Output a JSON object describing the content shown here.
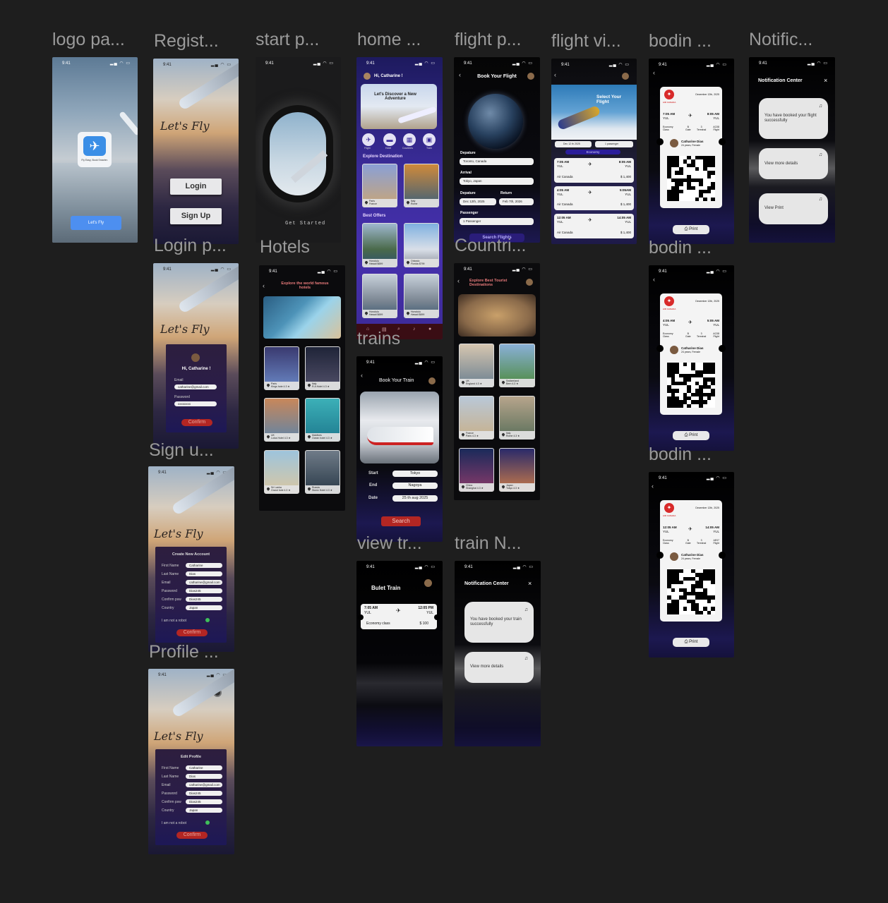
{
  "frames": {
    "logo": {
      "label": "logo pa...",
      "time": "9:41",
      "tagline": "Fly Easy, Book Smarter.",
      "cta": "Let's Fly"
    },
    "register": {
      "label": "Regist...",
      "time": "9:41",
      "title": "Let's Fly",
      "login": "Login",
      "signup": "Sign Up"
    },
    "start": {
      "label": "start p...",
      "time": "9:41",
      "cta": "Get Started"
    },
    "home": {
      "label": "home ...",
      "time": "9:41",
      "greeting": "Hi, Catharine !",
      "hero": "Let's Discover a New Adventure",
      "cats": [
        "Flight",
        "Hotel",
        "Countries",
        "Train"
      ],
      "explore_title": "Explore Destination",
      "explore": [
        {
          "name": "Paris",
          "sub": "France",
          "rate": "4.5"
        },
        {
          "name": "Italy",
          "sub": "Rome",
          "rate": "4.3"
        }
      ],
      "offers_title": "Best Offers",
      "offers": [
        {
          "name": "Honolulu",
          "sub": "Hawaii",
          "price": "$699"
        },
        {
          "name": "Orlando",
          "sub": "Florida",
          "price": "$799"
        },
        {
          "name": "Honolulu",
          "sub": "Hawaii",
          "price": "$699"
        },
        {
          "name": "Honolulu",
          "sub": "Hawaii",
          "price": "$699"
        }
      ]
    },
    "flight_plan": {
      "label": "flight p...",
      "time": "9:41",
      "title": "Book Your Flight",
      "departure_label": "Depature",
      "departure": "Toronto, Canada",
      "arrival_label": "Arrival",
      "arrival": "Tokyo, Japan",
      "dep_date_label": "Depature",
      "dep_date": "Dec 12th, 2025",
      "return_label": "Return",
      "return_date": "Feb 7th, 2026",
      "passenger_label": "Passenger",
      "passenger": "1 Passenger",
      "search": "Search Flights"
    },
    "flight_view": {
      "label": "flight vi...",
      "time": "9:41",
      "title": "Select Your Flight",
      "date": "Dec 12 th 2025",
      "pax": "1 passenger",
      "class": "Economy",
      "flights": [
        {
          "dep": "7:05 AM",
          "dep_code": "YUL",
          "arr": "8:05 AM",
          "arr_code": "YUL",
          "airline": "Air Canada",
          "price": "$ 1,400"
        },
        {
          "dep": "4:05 AM",
          "dep_code": "YUL",
          "arr": "5:05AM",
          "arr_code": "YUL",
          "airline": "Air Canada",
          "price": "$ 1,400"
        },
        {
          "dep": "12:05 AM",
          "dep_code": "YUL",
          "arr": "14:05 AM",
          "arr_code": "YUL",
          "airline": "Air Canada",
          "price": "$ 1,400"
        }
      ]
    },
    "boarding": [
      {
        "label": "bodin ...",
        "time": "9:41",
        "airline": "AIR CANADA",
        "date": "December 12th, 2025",
        "dep": "7:05 AM",
        "dep_code": "YUL",
        "arr": "8:05 AM",
        "arr_code": "YUL",
        "class": "Economy",
        "class_sub": "Class",
        "gate": "B",
        "gate_sub": "Gate",
        "terminal": "3",
        "terminal_sub": "Terminal",
        "flight": "AC08",
        "flight_sub": "Flight",
        "name": "Catharine Dias",
        "info": "24 years, Female",
        "print": "Print"
      },
      {
        "label": "bodin ...",
        "time": "9:41",
        "airline": "AIR CANADA",
        "date": "December 12th, 2025",
        "dep": "4:05 AM",
        "dep_code": "YUL",
        "arr": "5:05 AM",
        "arr_code": "YUL",
        "class": "Economy",
        "class_sub": "Class",
        "gate": "B",
        "gate_sub": "Gate",
        "terminal": "3",
        "terminal_sub": "Terminal",
        "flight": "AC08",
        "flight_sub": "Flight",
        "name": "Catharine Dias",
        "info": "24 years, Female",
        "print": "Print"
      },
      {
        "label": "bodin ...",
        "time": "9:41",
        "airline": "AIR CANADA",
        "date": "December 12th, 2025",
        "dep": "12:05 AM",
        "dep_code": "YUL",
        "arr": "14:05 AM",
        "arr_code": "YUL",
        "class": "Economy",
        "class_sub": "Class",
        "gate": "B",
        "gate_sub": "Gate",
        "terminal": "3",
        "terminal_sub": "Terminal",
        "flight": "AE07",
        "flight_sub": "Flight",
        "name": "Catharine Dias",
        "info": "24 years, Female",
        "print": "Print"
      }
    ],
    "notif": {
      "label": "Notific...",
      "time": "9:41",
      "title": "Notification Center",
      "items": [
        "You have booked your flight successfully",
        "View more details",
        "View Print"
      ]
    },
    "login": {
      "label": "Login p...",
      "time": "9:41",
      "title": "Let's Fly",
      "greeting": "Hi, Catharine !",
      "email_label": "Email",
      "email": "catharine@gmail.com",
      "password_label": "Password",
      "password": "xxxxxxxx",
      "confirm": "Confirm"
    },
    "hotels": {
      "label": "Hotels",
      "time": "9:41",
      "title": "Explore the world famous hotels",
      "items": [
        {
          "name": "Paris",
          "sub": "Kings hote",
          "rate": "4.3"
        },
        {
          "name": "Italy",
          "sub": "R.A Hotel",
          "rate": "4.3"
        },
        {
          "name": "UK",
          "sub": "Lotus Hotel",
          "rate": "4.3"
        },
        {
          "name": "Maldives",
          "sub": "Ocean hotel",
          "rate": "4.3"
        },
        {
          "name": "Sri Lanka",
          "sub": "Grand hote",
          "rate": "4.3"
        },
        {
          "name": "Russia",
          "sub": "Stoniz Hotel",
          "rate": "4.3"
        }
      ]
    },
    "countries": {
      "label": "Countri...",
      "time": "9:41",
      "title": "Explore Best Tourist Destinations",
      "items": [
        {
          "name": "UK",
          "sub": "England",
          "rate": "4.3"
        },
        {
          "name": "Switzerland",
          "sub": "Bern",
          "rate": "4.3"
        },
        {
          "name": "France",
          "sub": "Paris",
          "rate": "4.3"
        },
        {
          "name": "Italy",
          "sub": "Rome",
          "rate": "4.3"
        },
        {
          "name": "China",
          "sub": "Shanghai",
          "rate": "4.3"
        },
        {
          "name": "Japan",
          "sub": "Tokyo",
          "rate": "4.3"
        }
      ]
    },
    "trains": {
      "label": "trains",
      "time": "9:41",
      "title": "Book Your Train",
      "start_label": "Start",
      "start": "Tokyo",
      "end_label": "End",
      "end": "Nagoya",
      "date_label": "Date",
      "date": "25 th aug  2025",
      "search": "Search"
    },
    "signup": {
      "label": "Sign u...",
      "time": "9:41",
      "title": "Let's Fly",
      "heading": "Create New Account",
      "fields": [
        {
          "label": "First Name",
          "value": "Catharine"
        },
        {
          "label": "Last Name",
          "value": "Dias"
        },
        {
          "label": "Email",
          "value": "catharine@gmail.com"
        },
        {
          "label": "Password",
          "value": "Dias245"
        },
        {
          "label": "Confirm psw",
          "value": "Dias245"
        },
        {
          "label": "Country",
          "value": "Japan"
        }
      ],
      "robot": "I am not a robot",
      "confirm": "Confirm"
    },
    "view_train": {
      "label": "view tr...",
      "time": "9:41",
      "title": "Bulet Train",
      "dep": "7:05 AM",
      "dep_code": "YUL",
      "arr": "12:05 PM",
      "arr_code": "YUL",
      "class": "Economy class",
      "price": "$ 100"
    },
    "train_notif": {
      "label": "train N...",
      "time": "9:41",
      "title": "Notification Center",
      "items": [
        "You have booked your train successfully",
        "View more details"
      ]
    },
    "profile": {
      "label": "Profile ...",
      "time": "9:41",
      "title": "Let's Fly",
      "heading": "Edit Profile",
      "fields": [
        {
          "label": "First Name",
          "value": "Catharine"
        },
        {
          "label": "Last Name",
          "value": "Dias"
        },
        {
          "label": "Email",
          "value": "catharine@gmail.com"
        },
        {
          "label": "Password",
          "value": "Dias245"
        },
        {
          "label": "Confirm psw",
          "value": "Dias245"
        },
        {
          "label": "Country",
          "value": "Japan"
        }
      ],
      "robot": "I am not a robot",
      "confirm": "Confirm"
    }
  },
  "colors": {
    "canvas": "#1e1e1e",
    "label": "#9a9a9a",
    "accent_red": "#b32623",
    "purple": "#2a1d4a",
    "blue_btn": "#4d8ff0"
  },
  "icons": {
    "status": "signal-wifi-battery-icon",
    "back": "chevron-left-icon",
    "close": "close-icon",
    "plane": "plane-icon",
    "pin": "location-pin-icon",
    "star": "star-icon",
    "print": "printer-icon",
    "check": "check-circle-icon"
  }
}
